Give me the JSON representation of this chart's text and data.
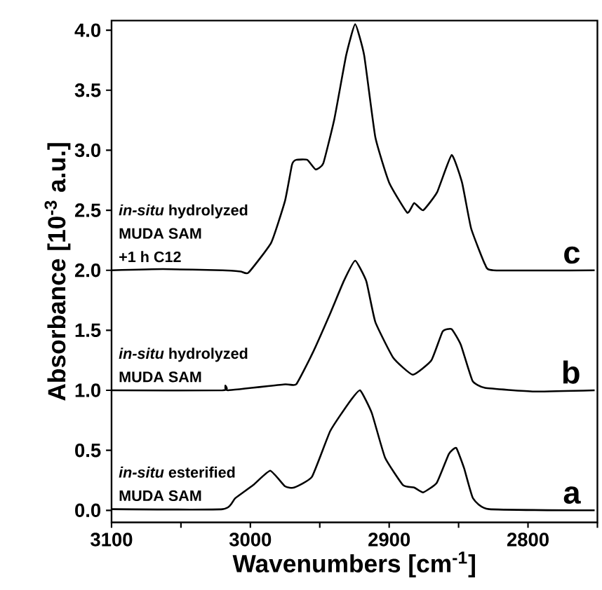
{
  "chart_data": {
    "type": "line",
    "xlabel": "Wavenumbers [cm$^{-1}$]",
    "ylabel": "Absorbance [10$^{-3}$ a.u.]",
    "xlim": [
      3100,
      2750
    ],
    "ylim": [
      -0.1,
      4.08
    ],
    "xticks": [
      3100,
      {
        "value": 3050,
        "label": null
      },
      3000,
      {
        "value": 2950,
        "label": null
      },
      2900,
      {
        "value": 2850,
        "label": null
      },
      2800,
      {
        "value": 2750,
        "label": null
      }
    ],
    "yticks": [
      {
        "value": 0,
        "label": "0.0"
      },
      0.5,
      {
        "value": 1,
        "label": "1.0"
      },
      1.5,
      {
        "value": 2,
        "label": "2.0"
      },
      2.5,
      {
        "value": 3,
        "label": "3.0"
      },
      3.5,
      {
        "value": 4,
        "label": "4.0"
      }
    ],
    "series": [
      {
        "color": "#000000",
        "x": [
          3100,
          3063,
          3020,
          3007,
          3001.4,
          2985,
          2975,
          2970,
          2967,
          2959,
          2953,
          2947.5,
          2939.5,
          2931,
          2924.5,
          2918,
          2910,
          2900,
          2887,
          2882,
          2875.5,
          2865.5,
          2855,
          2847.5,
          2841,
          2831,
          2825,
          2752
        ],
        "values": [
          2.0,
          2.01,
          2.0,
          1.99,
          1.98,
          2.23,
          2.58,
          2.88,
          2.92,
          2.92,
          2.84,
          2.89,
          3.26,
          3.79,
          4.05,
          3.79,
          3.11,
          2.73,
          2.48,
          2.56,
          2.5,
          2.65,
          2.96,
          2.73,
          2.35,
          2.05,
          2.0,
          2.0
        ]
      },
      {
        "color": "#000000",
        "x": [
          3100,
          3020,
          3018,
          3016,
          2975,
          2967,
          2955.6,
          2942.5,
          2932.7,
          2924.5,
          2916.5,
          2910,
          2897,
          2883,
          2869.6,
          2861.5,
          2855,
          2848.4,
          2840,
          2831,
          2795.5,
          2752
        ],
        "values": [
          1.0,
          1.0,
          1.04,
          1.0,
          1.05,
          1.05,
          1.3,
          1.64,
          1.91,
          2.08,
          1.91,
          1.57,
          1.27,
          1.13,
          1.25,
          1.49,
          1.51,
          1.38,
          1.08,
          1.02,
          0.99,
          1.0
        ]
      },
      {
        "color": "#000000",
        "x": [
          3100,
          3020,
          3011,
          2998,
          2985.7,
          2975,
          2968.5,
          2955.6,
          2942.5,
          2929.4,
          2921,
          2912.5,
          2903,
          2890,
          2882,
          2875.5,
          2865.7,
          2857,
          2851.7,
          2846,
          2839.6,
          2828,
          2752
        ],
        "values": [
          0.01,
          0.01,
          0.1,
          0.21,
          0.33,
          0.2,
          0.19,
          0.28,
          0.66,
          0.89,
          1.0,
          0.81,
          0.44,
          0.21,
          0.19,
          0.15,
          0.23,
          0.47,
          0.52,
          0.35,
          0.1,
          0.01,
          0.0
        ]
      }
    ],
    "annotations": [
      "*in-situ* hydrolyzed",
      "MUDA SAM",
      "+1 h C12",
      "c",
      "*in-situ* hydrolyzed",
      "MUDA SAM",
      "b",
      "*in-situ* esterified",
      "MUDA SAM",
      "a"
    ]
  }
}
